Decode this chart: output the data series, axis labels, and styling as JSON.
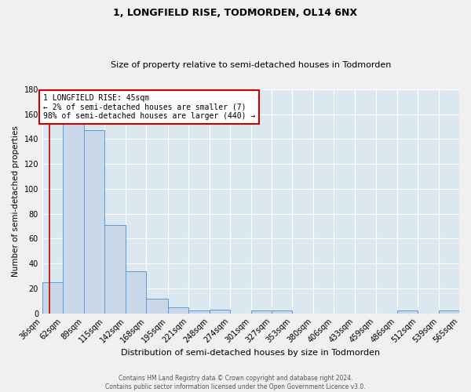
{
  "title1": "1, LONGFIELD RISE, TODMORDEN, OL14 6NX",
  "title2": "Size of property relative to semi-detached houses in Todmorden",
  "xlabel": "Distribution of semi-detached houses by size in Todmorden",
  "ylabel": "Number of semi-detached properties",
  "footnote": "Contains HM Land Registry data © Crown copyright and database right 2024.\nContains public sector information licensed under the Open Government Licence v3.0.",
  "bin_edges": [
    36,
    62,
    89,
    115,
    142,
    168,
    195,
    221,
    248,
    274,
    301,
    327,
    353,
    380,
    406,
    433,
    459,
    486,
    512,
    539,
    565
  ],
  "bar_heights": [
    25,
    153,
    147,
    71,
    34,
    12,
    5,
    2,
    3,
    0,
    2,
    2,
    0,
    0,
    0,
    0,
    0,
    2,
    0,
    2
  ],
  "bar_color": "#c8d8e8",
  "bar_edge_color": "#5b9bd5",
  "red_line_x": 45,
  "annotation_line1": "1 LONGFIELD RISE: 45sqm",
  "annotation_line2": "← 2% of semi-detached houses are smaller (7)",
  "annotation_line3": "98% of semi-detached houses are larger (440) →",
  "annotation_box_color": "#ffffff",
  "annotation_box_edge": "#cc0000",
  "ylim": [
    0,
    180
  ],
  "yticks": [
    0,
    20,
    40,
    60,
    80,
    100,
    120,
    140,
    160,
    180
  ],
  "fig_bg_color": "#f0f0f0",
  "plot_bg_color": "#dce8f0",
  "grid_color": "#ffffff",
  "title1_fontsize": 9,
  "title2_fontsize": 8,
  "xlabel_fontsize": 8,
  "ylabel_fontsize": 7.5,
  "tick_fontsize": 7,
  "annotation_fontsize": 7,
  "footnote_fontsize": 5.5
}
